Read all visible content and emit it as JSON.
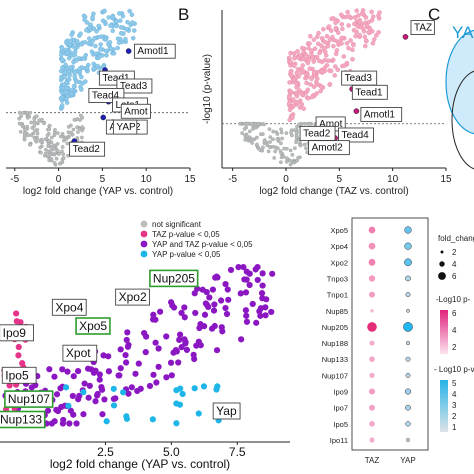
{
  "panel_letters": {
    "b": "B",
    "c": "C"
  },
  "venn_label": "YA",
  "chart_data": [
    {
      "id": "panelA",
      "type": "scatter",
      "xlabel": "log2 fold change (YAP vs. control)",
      "ylabel": "",
      "xlim": [
        -6,
        15
      ],
      "xticks": [
        -5,
        0,
        5,
        10,
        15
      ],
      "threshold_y_frac": 0.35,
      "labels": [
        {
          "text": "Amotl1",
          "x": 9.0,
          "y": 0.72
        },
        {
          "text": "Tead1",
          "x": 5.0,
          "y": 0.55
        },
        {
          "text": "Tead3",
          "x": 7.0,
          "y": 0.5
        },
        {
          "text": "Tead4",
          "x": 3.8,
          "y": 0.44
        },
        {
          "text": "Lats1",
          "x": 6.5,
          "y": 0.38
        },
        {
          "text": "Amot",
          "x": 7.5,
          "y": 0.34
        },
        {
          "text": "Amotl2",
          "x": 5.8,
          "y": 0.24
        },
        {
          "text": "YAP",
          "x": 6.6,
          "y": 0.24
        },
        {
          "text": "Tead2",
          "x": 1.6,
          "y": 0.1
        }
      ],
      "highlight": [
        {
          "x": 8.0,
          "y": 0.74
        },
        {
          "x": 5.2,
          "y": 0.57
        },
        {
          "x": 6.3,
          "y": 0.54
        },
        {
          "x": 4.3,
          "y": 0.46
        },
        {
          "x": 5.7,
          "y": 0.42
        },
        {
          "x": 6.6,
          "y": 0.4
        },
        {
          "x": 5.1,
          "y": 0.32
        },
        {
          "x": 6.2,
          "y": 0.29
        },
        {
          "x": 1.8,
          "y": 0.17
        },
        {
          "x": 5.3,
          "y": 0.62
        }
      ]
    },
    {
      "id": "panelB",
      "type": "scatter",
      "xlabel": "log2 fold change (TAZ vs. control)",
      "ylabel": "-log10 (p-value)",
      "xlim": [
        -6,
        15
      ],
      "xticks": [
        -5,
        0,
        5,
        10,
        15
      ],
      "threshold_y_frac": 0.28,
      "labels": [
        {
          "text": "TAZ",
          "x": 12.0,
          "y": 0.87
        },
        {
          "text": "Tead3",
          "x": 5.5,
          "y": 0.55
        },
        {
          "text": "Tead1",
          "x": 6.5,
          "y": 0.46
        },
        {
          "text": "Amotl1",
          "x": 7.3,
          "y": 0.32
        },
        {
          "text": "Amot",
          "x": 3.1,
          "y": 0.26
        },
        {
          "text": "Tead2",
          "x": 1.6,
          "y": 0.2
        },
        {
          "text": "Tead4",
          "x": 5.2,
          "y": 0.19
        },
        {
          "text": "Amotl2",
          "x": 2.4,
          "y": 0.11
        }
      ],
      "highlight": [
        {
          "x": 11.2,
          "y": 0.83
        },
        {
          "x": 5.6,
          "y": 0.6
        },
        {
          "x": 6.2,
          "y": 0.5
        },
        {
          "x": 7.8,
          "y": 0.5
        },
        {
          "x": 6.6,
          "y": 0.36
        },
        {
          "x": 4.5,
          "y": 0.28
        },
        {
          "x": 3.5,
          "y": 0.24
        },
        {
          "x": 4.6,
          "y": 0.19
        },
        {
          "x": 4.0,
          "y": 0.16
        }
      ]
    },
    {
      "id": "panelD",
      "type": "scatter",
      "xlabel": "log2 fold change (YAP vs. control)",
      "xticks": [
        "2.5",
        "5.0",
        "7.5"
      ],
      "xlim": [
        -1.5,
        9.5
      ],
      "legend": [
        {
          "label": "not significant",
          "color": "#bdbdbd"
        },
        {
          "label": "TAZ p-value < 0,05",
          "color": "#e8338a"
        },
        {
          "label": "YAP and TAZ p-value < 0,05",
          "color": "#8b17c2"
        },
        {
          "label": "YAP p-value < 0,05",
          "color": "#1eb6e8"
        }
      ],
      "labels": [
        {
          "text": "Nup205",
          "x": 4.3,
          "y": 0.88,
          "green": true
        },
        {
          "text": "Xpo2",
          "x": 3.0,
          "y": 0.77,
          "green": false
        },
        {
          "text": "Xpo4",
          "x": 0.6,
          "y": 0.71,
          "green": false
        },
        {
          "text": "Xpo5",
          "x": 1.5,
          "y": 0.6,
          "green": true
        },
        {
          "text": "Ipo9",
          "x": -1.4,
          "y": 0.56,
          "green": false
        },
        {
          "text": "Xpot",
          "x": 1.0,
          "y": 0.44,
          "green": false
        },
        {
          "text": "Ipo5",
          "x": -1.3,
          "y": 0.31,
          "green": false
        },
        {
          "text": "Nup107",
          "x": -1.2,
          "y": 0.17,
          "green": true
        },
        {
          "text": "Nup133",
          "x": -1.5,
          "y": 0.05,
          "green": true
        },
        {
          "text": "Yap",
          "x": 6.7,
          "y": 0.1,
          "green": false
        }
      ]
    },
    {
      "id": "panelE",
      "type": "dot_plot",
      "rows": [
        "Xpo5",
        "Xpo4",
        "Xpo2",
        "Tnpo3",
        "Tnpo1",
        "Nup85",
        "Nup205",
        "Nup188",
        "Nup133",
        "Nup107",
        "Ipo9",
        "Ipo7",
        "Ipo5",
        "Ipo11"
      ],
      "columns": [
        "TAZ",
        "YAP"
      ],
      "taz": {
        "size": [
          0.6,
          0.6,
          0.6,
          0.55,
          0.5,
          0.2,
          0.95,
          0.4,
          0.45,
          0.4,
          0.5,
          0.5,
          0.45,
          0.4
        ],
        "intensity": [
          0.45,
          0.35,
          0.45,
          0.3,
          0.28,
          0.1,
          0.95,
          0.18,
          0.22,
          0.18,
          0.28,
          0.25,
          0.22,
          0.18
        ]
      },
      "yap": {
        "size": [
          0.6,
          0.6,
          0.65,
          0.4,
          0.3,
          0.15,
          0.9,
          0.2,
          0.3,
          0.3,
          0.45,
          0.4,
          0.35,
          0.15
        ],
        "intensity": [
          0.6,
          0.5,
          0.65,
          0.2,
          0.15,
          0.05,
          0.95,
          0.08,
          0.15,
          0.15,
          0.3,
          0.25,
          0.2,
          0.05
        ]
      },
      "legend_size_title": "fold_chang",
      "legend_size_values": [
        "2",
        "4",
        "6"
      ],
      "legend_taz_title": "-Log10 p-",
      "legend_taz_ticks": [
        "6",
        "4",
        "2"
      ],
      "legend_yap_title": "- Log10 p-va",
      "legend_yap_ticks": [
        "5",
        "4",
        "3",
        "2",
        "1"
      ]
    }
  ]
}
